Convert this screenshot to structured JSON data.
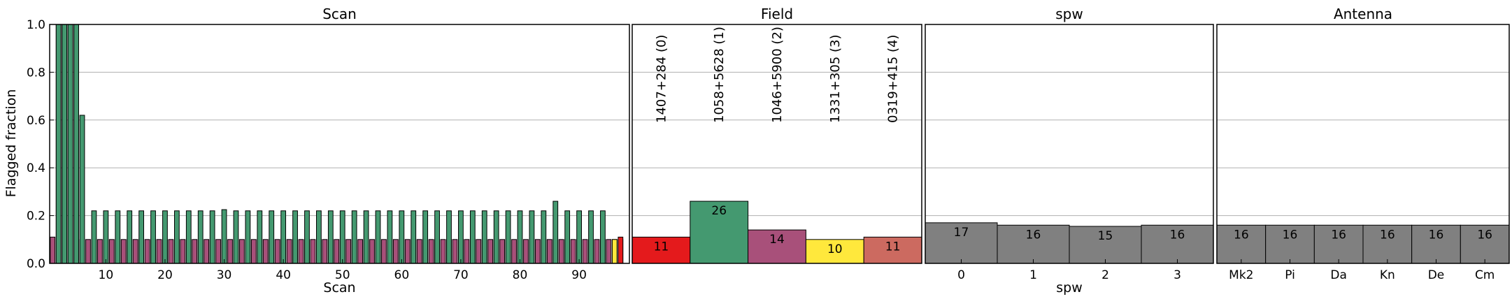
{
  "y_axis": {
    "label": "Flagged fraction",
    "ylim": [
      0,
      1
    ],
    "ticks": [
      0.0,
      0.2,
      0.4,
      0.6,
      0.8,
      1.0
    ],
    "tick_labels": [
      "0.0",
      "0.2",
      "0.4",
      "0.6",
      "0.8",
      "1.0"
    ]
  },
  "colors": {
    "maroon": "#A8507A",
    "green": "#449970",
    "red": "#E41A1C",
    "yellow": "#FFE83C",
    "salmon": "#CC6A60",
    "gray": "#808080",
    "grid": "#b0b0b0"
  },
  "chart_data": [
    {
      "type": "bar",
      "title": "Scan",
      "xlabel": "Scan",
      "xlim": [
        0.5,
        98.5
      ],
      "ylim": [
        0,
        1
      ],
      "x_ticks": [
        10,
        20,
        30,
        40,
        50,
        60,
        70,
        80,
        90
      ],
      "x_tick_labels": [
        "10",
        "20",
        "30",
        "40",
        "50",
        "60",
        "70",
        "80",
        "90"
      ],
      "series": [
        {
          "name": "field 2",
          "color": "#A8507A",
          "x": [
            1,
            2,
            3,
            4,
            5,
            6,
            7,
            8,
            9,
            10,
            11,
            12,
            13,
            14,
            15,
            16,
            17,
            18,
            19,
            20,
            21,
            22,
            23,
            24,
            25,
            26,
            27,
            28,
            29,
            30,
            31,
            32,
            33,
            34,
            35,
            36,
            37,
            38,
            39,
            40,
            41,
            42,
            43,
            44,
            45,
            46,
            47,
            48,
            49,
            50,
            51,
            52,
            53,
            54,
            55,
            56,
            57,
            58,
            59,
            60,
            61,
            62,
            63,
            64,
            65,
            66,
            67,
            68,
            69,
            70,
            71,
            72,
            73,
            74,
            75,
            76,
            77,
            78,
            79,
            80,
            81,
            82,
            83,
            84,
            85,
            86,
            87,
            88,
            89,
            90,
            91,
            92,
            93,
            94,
            95,
            96,
            97
          ],
          "values": [
            0.11,
            1.0,
            1.0,
            1.0,
            1.0,
            0.1,
            0.1,
            0.1,
            0.1,
            0.1,
            0.1,
            0.1,
            0.1,
            0.1,
            0.1,
            0.1,
            0.1,
            0.1,
            0.1,
            0.1,
            0.1,
            0.1,
            0.1,
            0.1,
            0.1,
            0.1,
            0.1,
            0.1,
            0.1,
            0.1,
            0.1,
            0.1,
            0.1,
            0.1,
            0.1,
            0.1,
            0.1,
            0.1,
            0.1,
            0.1,
            0.1,
            0.1,
            0.1,
            0.1,
            0.1,
            0.1,
            0.1,
            0.1,
            0.1,
            0.1,
            0.1,
            0.1,
            0.1,
            0.1,
            0.1,
            0.1,
            0.1,
            0.1,
            0.1,
            0.1,
            0.1,
            0.1,
            0.1,
            0.1,
            0.1,
            0.1,
            0.1,
            0.1,
            0.1,
            0.1,
            0.1,
            0.1,
            0.1,
            0.1,
            0.1,
            0.1,
            0.1,
            0.1,
            0.1,
            0.1,
            0.1,
            0.1,
            0.1,
            0.1,
            0.1,
            0.1,
            0.1,
            0.1,
            0.1,
            0.1,
            0.1,
            0.1,
            0.1,
            0.1,
            0.1,
            0.1,
            0.1
          ]
        },
        {
          "name": "field 1",
          "color": "#449970",
          "x": [
            2,
            3,
            4,
            5,
            6,
            8,
            10,
            12,
            14,
            16,
            18,
            20,
            22,
            24,
            26,
            28,
            30,
            32,
            34,
            36,
            38,
            40,
            42,
            44,
            46,
            48,
            50,
            52,
            54,
            56,
            58,
            60,
            62,
            64,
            66,
            68,
            70,
            72,
            74,
            76,
            78,
            80,
            82,
            84,
            86,
            88,
            90,
            92,
            94
          ],
          "values": [
            1.0,
            1.0,
            1.0,
            1.0,
            0.62,
            0.22,
            0.22,
            0.22,
            0.22,
            0.22,
            0.22,
            0.22,
            0.22,
            0.22,
            0.22,
            0.22,
            0.225,
            0.22,
            0.22,
            0.22,
            0.22,
            0.22,
            0.22,
            0.22,
            0.22,
            0.22,
            0.22,
            0.22,
            0.22,
            0.22,
            0.22,
            0.22,
            0.22,
            0.22,
            0.22,
            0.22,
            0.22,
            0.22,
            0.22,
            0.22,
            0.22,
            0.22,
            0.22,
            0.22,
            0.26,
            0.22,
            0.22,
            0.22,
            0.22
          ]
        },
        {
          "name": "field 3",
          "color": "#FFE83C",
          "x": [
            96
          ],
          "values": [
            0.1
          ]
        },
        {
          "name": "field 0",
          "color": "#E41A1C",
          "x": [
            97
          ],
          "values": [
            0.11
          ]
        }
      ]
    },
    {
      "type": "bar",
      "title": "Field",
      "xlabel": "",
      "ylim": [
        0,
        1
      ],
      "categories": [
        "1407+284 (0)",
        "1058+5628 (1)",
        "1046+5900 (2)",
        "1331+305 (3)",
        "0319+415 (4)"
      ],
      "values": [
        0.11,
        0.26,
        0.14,
        0.1,
        0.11
      ],
      "value_labels": [
        "11",
        "26",
        "14",
        "10",
        "11"
      ],
      "colors": [
        "#E41A1C",
        "#449970",
        "#A8507A",
        "#FFE83C",
        "#CC6A60"
      ]
    },
    {
      "type": "bar",
      "title": "spw",
      "xlabel": "spw",
      "ylim": [
        0,
        1
      ],
      "categories": [
        "0",
        "1",
        "2",
        "3"
      ],
      "values": [
        0.17,
        0.16,
        0.155,
        0.16
      ],
      "value_labels": [
        "17",
        "16",
        "15",
        "16"
      ],
      "colors": [
        "#808080",
        "#808080",
        "#808080",
        "#808080"
      ]
    },
    {
      "type": "bar",
      "title": "Antenna",
      "xlabel": "",
      "ylim": [
        0,
        1
      ],
      "categories": [
        "Mk2",
        "Pi",
        "Da",
        "Kn",
        "De",
        "Cm"
      ],
      "values": [
        0.16,
        0.16,
        0.16,
        0.16,
        0.16,
        0.16
      ],
      "value_labels": [
        "16",
        "16",
        "16",
        "16",
        "16",
        "16"
      ],
      "colors": [
        "#808080",
        "#808080",
        "#808080",
        "#808080",
        "#808080",
        "#808080"
      ]
    }
  ]
}
